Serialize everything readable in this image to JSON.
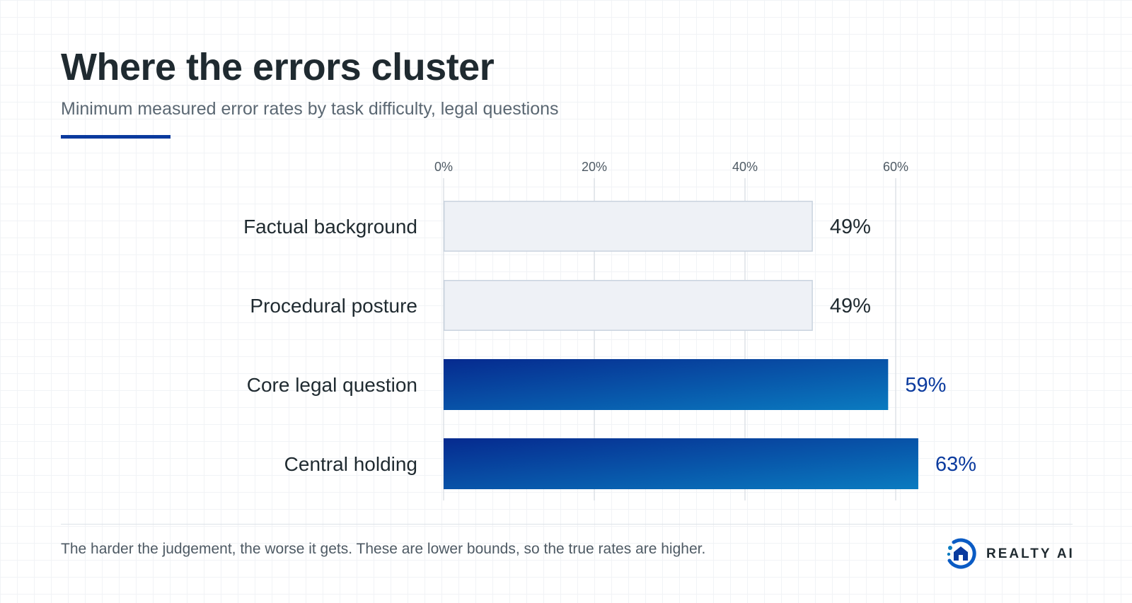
{
  "title": "Where the errors cluster",
  "subtitle": "Minimum measured error rates by task difficulty, legal questions",
  "footnote": "The harder the judgement, the worse it gets. These are lower bounds, so the true rates are higher.",
  "brand": {
    "name": "REALTY AI",
    "icon": "realty-ai-logo-icon"
  },
  "colors": {
    "accent": "#0a3a9e",
    "highlight_bar_start": "#062a8f",
    "highlight_bar_end": "#0a7bc0",
    "highlight_label": "#0a3a9e",
    "muted_bar_fill": "#eef1f6",
    "muted_bar_stroke": "#c9d3df",
    "muted_label": "#1f2a30",
    "gridline": "#dde2e7",
    "text": "#1f2a30"
  },
  "chart_data": {
    "type": "bar",
    "orientation": "horizontal",
    "categories": [
      "Factual background",
      "Procedural posture",
      "Core legal question",
      "Central holding"
    ],
    "values": [
      49,
      49,
      59,
      63
    ],
    "value_labels": [
      "49%",
      "49%",
      "59%",
      "63%"
    ],
    "highlighted": [
      false,
      false,
      true,
      true
    ],
    "xlim": [
      0,
      63
    ],
    "x_ticks": [
      0,
      20,
      40,
      60
    ],
    "x_tick_labels": [
      "0%",
      "20%",
      "40%",
      "60%"
    ],
    "xaxis_position": "top",
    "grid": true,
    "legend": "none"
  }
}
